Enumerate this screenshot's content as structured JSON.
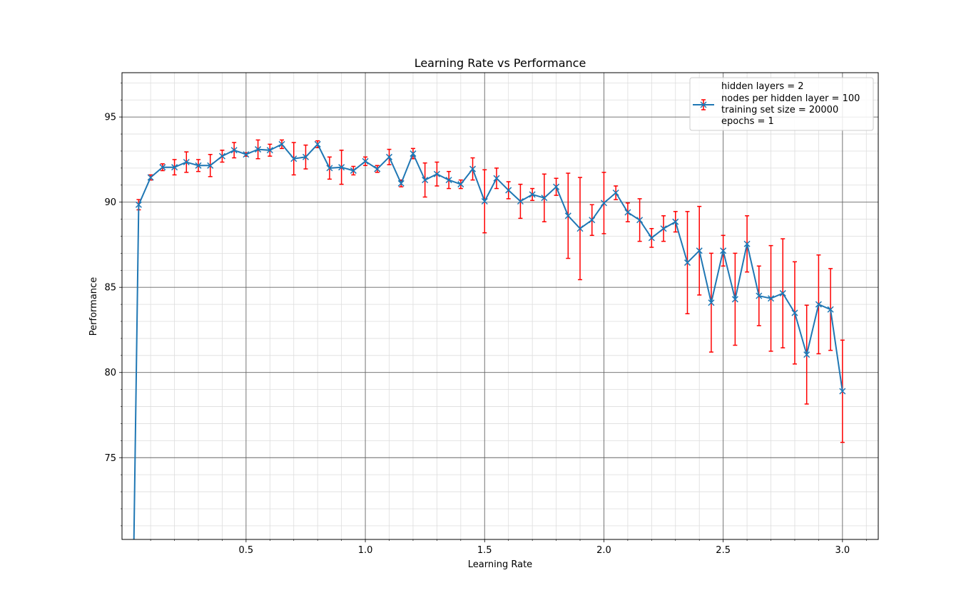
{
  "chart_data": {
    "type": "line",
    "title": "Learning Rate vs Performance",
    "xlabel": "Learning Rate",
    "ylabel": "Performance",
    "xlim": [
      -0.02,
      3.15
    ],
    "ylim": [
      70.2,
      97.6
    ],
    "x_ticks": [
      "0.5",
      "1.0",
      "1.5",
      "2.0",
      "2.5",
      "3.0"
    ],
    "y_ticks": [
      "75",
      "80",
      "85",
      "90",
      "95"
    ],
    "grid": true,
    "legend_position": "top-right",
    "legend_lines": [
      "hidden layers = 2",
      "nodes per hidden layer = 100",
      "training set size = 20000",
      "epochs = 1"
    ],
    "colors": {
      "line": "#1f77b4",
      "errorbar": "#ff0000",
      "major_grid": "#666666",
      "minor_grid": "#dddddd"
    },
    "series": [
      {
        "marker": "x",
        "x": [
          0.03,
          0.05,
          0.1,
          0.15,
          0.2,
          0.25,
          0.3,
          0.35,
          0.4,
          0.45,
          0.5,
          0.55,
          0.6,
          0.65,
          0.7,
          0.75,
          0.8,
          0.85,
          0.9,
          0.95,
          1.0,
          1.05,
          1.1,
          1.15,
          1.2,
          1.25,
          1.3,
          1.35,
          1.4,
          1.45,
          1.5,
          1.55,
          1.6,
          1.65,
          1.7,
          1.75,
          1.8,
          1.85,
          1.9,
          1.95,
          2.0,
          2.05,
          2.1,
          2.15,
          2.2,
          2.25,
          2.3,
          2.35,
          2.4,
          2.45,
          2.5,
          2.55,
          2.6,
          2.65,
          2.7,
          2.75,
          2.8,
          2.85,
          2.9,
          2.95,
          3.0
        ],
        "values": [
          70.2,
          89.85,
          91.45,
          92.05,
          92.05,
          92.35,
          92.15,
          92.15,
          92.7,
          93.05,
          92.8,
          93.1,
          93.05,
          93.4,
          92.55,
          92.65,
          93.4,
          92.0,
          92.05,
          91.85,
          92.4,
          91.95,
          92.65,
          91.1,
          92.85,
          91.3,
          91.65,
          91.3,
          91.05,
          91.95,
          90.05,
          91.4,
          90.7,
          90.05,
          90.45,
          90.25,
          90.9,
          89.2,
          88.45,
          88.95,
          89.95,
          90.55,
          89.4,
          88.95,
          87.9,
          88.45,
          88.85,
          86.45,
          87.15,
          84.1,
          87.15,
          84.3,
          87.55,
          84.5,
          84.35,
          84.65,
          83.5,
          81.05,
          84.0,
          83.7,
          78.9
        ],
        "errors": [
          0,
          0.3,
          0.15,
          0.2,
          0.45,
          0.6,
          0.35,
          0.65,
          0.35,
          0.45,
          0.1,
          0.55,
          0.35,
          0.25,
          0.95,
          0.7,
          0.2,
          0.65,
          1.0,
          0.25,
          0.25,
          0.2,
          0.45,
          0.2,
          0.3,
          1.0,
          0.7,
          0.5,
          0.25,
          0.65,
          1.85,
          0.6,
          0.5,
          1.0,
          0.35,
          1.4,
          0.5,
          2.5,
          3.0,
          0.9,
          1.8,
          0.4,
          0.55,
          1.25,
          0.55,
          0.75,
          0.6,
          3.0,
          2.6,
          2.9,
          0.9,
          2.7,
          1.65,
          1.75,
          3.1,
          3.2,
          3.0,
          2.9,
          2.9,
          2.4,
          3.0
        ]
      }
    ]
  }
}
